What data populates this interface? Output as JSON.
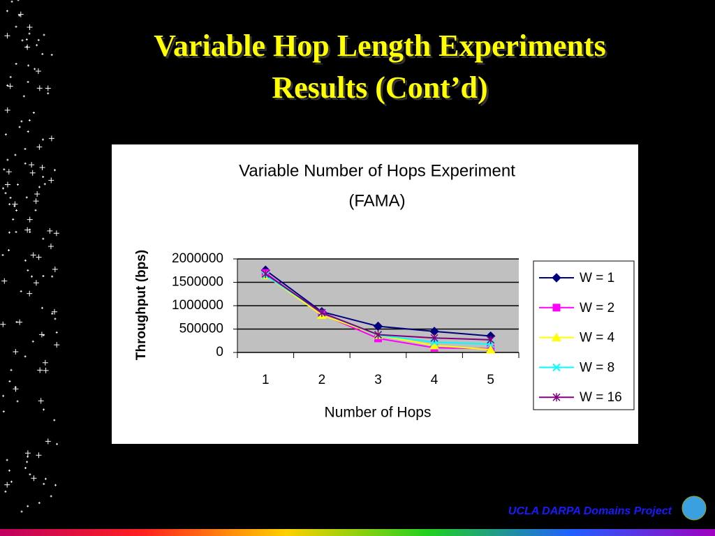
{
  "slide": {
    "title": [
      "Variable Hop Length Experiments",
      "Results (Cont’d)"
    ],
    "footer": "UCLA DARPA Domains Project"
  },
  "chart_data": {
    "type": "line",
    "title": [
      "Variable Number of Hops Experiment",
      "(FAMA)"
    ],
    "x_label": "Number of Hops",
    "y_label": "Throughput (bps)",
    "categories": [
      "1",
      "2",
      "3",
      "4",
      "5"
    ],
    "series": [
      {
        "name": "W = 1",
        "color": "#000080",
        "marker": "diamond",
        "values": [
          1760000,
          870000,
          560000,
          450000,
          350000
        ]
      },
      {
        "name": "W = 2",
        "color": "#ff00ff",
        "marker": "square",
        "values": [
          1700000,
          820000,
          300000,
          100000,
          80000
        ]
      },
      {
        "name": "W = 4",
        "color": "#ffff00",
        "marker": "triangle",
        "values": [
          1650000,
          800000,
          370000,
          150000,
          60000
        ]
      },
      {
        "name": "W = 8",
        "color": "#00ffff",
        "marker": "x",
        "values": [
          1650000,
          850000,
          370000,
          220000,
          180000
        ]
      },
      {
        "name": "W = 16",
        "color": "#800080",
        "marker": "star",
        "values": [
          1680000,
          850000,
          380000,
          310000,
          270000
        ]
      }
    ],
    "ylim": [
      0,
      2000000
    ],
    "yticks": [
      0,
      500000,
      1000000,
      1500000,
      2000000
    ],
    "grid": true,
    "legend": "right"
  }
}
